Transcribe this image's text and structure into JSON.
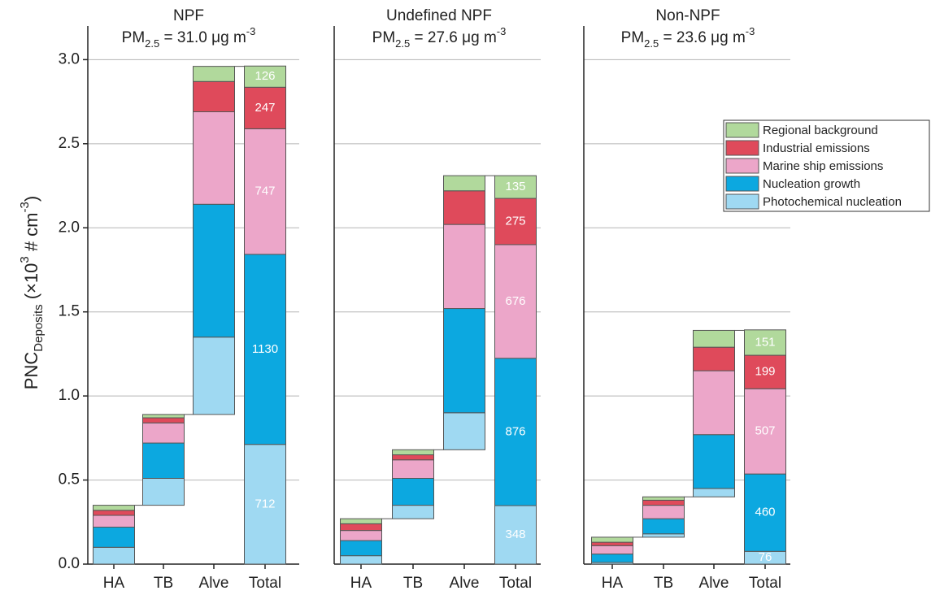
{
  "chart_data": [
    {
      "type": "bar",
      "stacking": "waterfall",
      "title": "NPF",
      "subtitle": [
        "PM",
        "2.5",
        " = 31.0 μg m",
        "-3"
      ],
      "y_label": [
        "PNC",
        "Deposits",
        " (×10",
        "3",
        " # cm",
        "-3",
        ")"
      ],
      "categories": [
        "HA",
        "TB",
        "Alve",
        "Total"
      ],
      "ylim": [
        0,
        3.2
      ],
      "yticks": [
        {
          "value": 0,
          "label": "0.0"
        },
        {
          "value": 0.5,
          "label": "0.5"
        },
        {
          "value": 1,
          "label": "1.0"
        },
        {
          "value": 1.5,
          "label": "1.5"
        },
        {
          "value": 2,
          "label": "2.0"
        },
        {
          "value": 2.5,
          "label": "2.5"
        },
        {
          "value": 3,
          "label": "3.0"
        }
      ],
      "grid": true,
      "series": [
        {
          "color": "#9fd9f2",
          "values": [
            0.1,
            0.16,
            0.46,
            0.712
          ],
          "value_labels": [
            null,
            null,
            null,
            "712"
          ]
        },
        {
          "color": "#0ca8e0",
          "values": [
            0.12,
            0.21,
            0.79,
            1.13
          ],
          "value_labels": [
            null,
            null,
            null,
            "1130"
          ]
        },
        {
          "color": "#eca6c9",
          "values": [
            0.07,
            0.12,
            0.55,
            0.747
          ],
          "value_labels": [
            null,
            null,
            null,
            "747"
          ]
        },
        {
          "color": "#df4a5b",
          "values": [
            0.03,
            0.03,
            0.18,
            0.247
          ],
          "value_labels": [
            null,
            null,
            null,
            "247"
          ]
        },
        {
          "color": "#b1d99c",
          "values": [
            0.03,
            0.02,
            0.09,
            0.126
          ],
          "value_labels": [
            null,
            null,
            null,
            "126"
          ]
        }
      ]
    },
    {
      "type": "bar",
      "stacking": "waterfall",
      "title": "Undefined NPF",
      "subtitle": [
        "PM",
        "2.5",
        " = 27.6 μg m",
        "-3"
      ],
      "categories": [
        "HA",
        "TB",
        "Alve",
        "Total"
      ],
      "ylim": [
        0,
        3.2
      ],
      "yticks": [
        0,
        0.5,
        1,
        1.5,
        2,
        2.5,
        3
      ],
      "grid": true,
      "series": [
        {
          "color": "#9fd9f2",
          "values": [
            0.05,
            0.08,
            0.22,
            0.348
          ],
          "value_labels": [
            null,
            null,
            null,
            "348"
          ]
        },
        {
          "color": "#0ca8e0",
          "values": [
            0.09,
            0.16,
            0.62,
            0.876
          ],
          "value_labels": [
            null,
            null,
            null,
            "876"
          ]
        },
        {
          "color": "#eca6c9",
          "values": [
            0.06,
            0.11,
            0.5,
            0.676
          ],
          "value_labels": [
            null,
            null,
            null,
            "676"
          ]
        },
        {
          "color": "#df4a5b",
          "values": [
            0.04,
            0.03,
            0.2,
            0.275
          ],
          "value_labels": [
            null,
            null,
            null,
            "275"
          ]
        },
        {
          "color": "#b1d99c",
          "values": [
            0.03,
            0.03,
            0.09,
            0.135
          ],
          "value_labels": [
            null,
            null,
            null,
            "135"
          ]
        }
      ]
    },
    {
      "type": "bar",
      "stacking": "waterfall",
      "title": "Non-NPF",
      "subtitle": [
        "PM",
        "2.5",
        " = 23.6 μg m",
        "-3"
      ],
      "categories": [
        "HA",
        "TB",
        "Alve",
        "Total"
      ],
      "ylim": [
        0,
        3.2
      ],
      "yticks": [
        0,
        0.5,
        1,
        1.5,
        2,
        2.5,
        3
      ],
      "grid": true,
      "legend": "upper right",
      "series": [
        {
          "name": "Photochemical nucleation",
          "color": "#9fd9f2",
          "values": [
            0.01,
            0.02,
            0.05,
            0.076
          ],
          "value_labels": [
            null,
            null,
            null,
            "76"
          ]
        },
        {
          "name": "Nucleation growth",
          "color": "#0ca8e0",
          "values": [
            0.05,
            0.09,
            0.32,
            0.46
          ],
          "value_labels": [
            null,
            null,
            null,
            "460"
          ]
        },
        {
          "name": "Marine ship emissions",
          "color": "#eca6c9",
          "values": [
            0.05,
            0.08,
            0.38,
            0.507
          ],
          "value_labels": [
            null,
            null,
            null,
            "507"
          ]
        },
        {
          "name": "Industrial emissions",
          "color": "#df4a5b",
          "values": [
            0.02,
            0.03,
            0.14,
            0.199
          ],
          "value_labels": [
            null,
            null,
            null,
            "199"
          ]
        },
        {
          "name": "Regional background",
          "color": "#b1d99c",
          "values": [
            0.03,
            0.02,
            0.1,
            0.151
          ],
          "value_labels": [
            null,
            null,
            null,
            "151"
          ]
        }
      ]
    }
  ]
}
